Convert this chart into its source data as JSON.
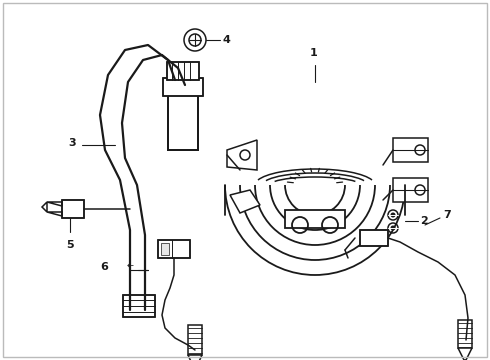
{
  "background_color": "#ffffff",
  "line_color": "#1a1a1a",
  "line_width": 1.1,
  "fig_width": 4.9,
  "fig_height": 3.6,
  "dpi": 100,
  "border_color": "#cccccc"
}
